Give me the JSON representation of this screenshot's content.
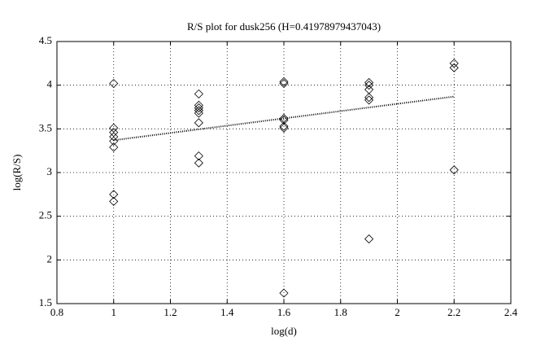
{
  "chart_data": {
    "type": "scatter",
    "title": "R/S plot for dusk256 (H=0.41978979437043)",
    "x_label": "log(d)",
    "y_label": "log(R/S)",
    "xlim": [
      0.8,
      2.4
    ],
    "xticks": [
      0.8,
      1,
      1.2,
      1.4,
      1.6,
      1.8,
      2,
      2.2,
      2.4
    ],
    "ylim": [
      1.5,
      4.5
    ],
    "yticks": [
      1.5,
      2,
      2.5,
      3,
      3.5,
      4,
      4.5
    ],
    "grid": true,
    "series": [
      {
        "color": "#000000",
        "marker": "diamond",
        "x": [
          1,
          1,
          1,
          1,
          1,
          1,
          1,
          1,
          1.3,
          1.3,
          1.3,
          1.3,
          1.3,
          1.3,
          1.3,
          1.3,
          1.6,
          1.6,
          1.6,
          1.6,
          1.6,
          1.6,
          1.6,
          1.9,
          1.9,
          1.9,
          1.9,
          1.9,
          1.9,
          2.2,
          2.2,
          2.2
        ],
        "values": [
          4.02,
          3.51,
          3.46,
          3.41,
          3.36,
          3.29,
          2.75,
          2.67,
          3.9,
          3.77,
          3.74,
          3.71,
          3.68,
          3.57,
          3.19,
          3.11,
          4.04,
          4.02,
          3.62,
          3.6,
          3.53,
          3.51,
          1.62,
          4.03,
          4.0,
          3.95,
          3.86,
          3.83,
          2.24,
          4.25,
          4.2,
          3.03
        ]
      },
      {
        "color": "#000000",
        "marker": "line",
        "dashed": true,
        "x": [
          1,
          2.2
        ],
        "values": [
          3.37,
          3.87
        ]
      }
    ]
  }
}
